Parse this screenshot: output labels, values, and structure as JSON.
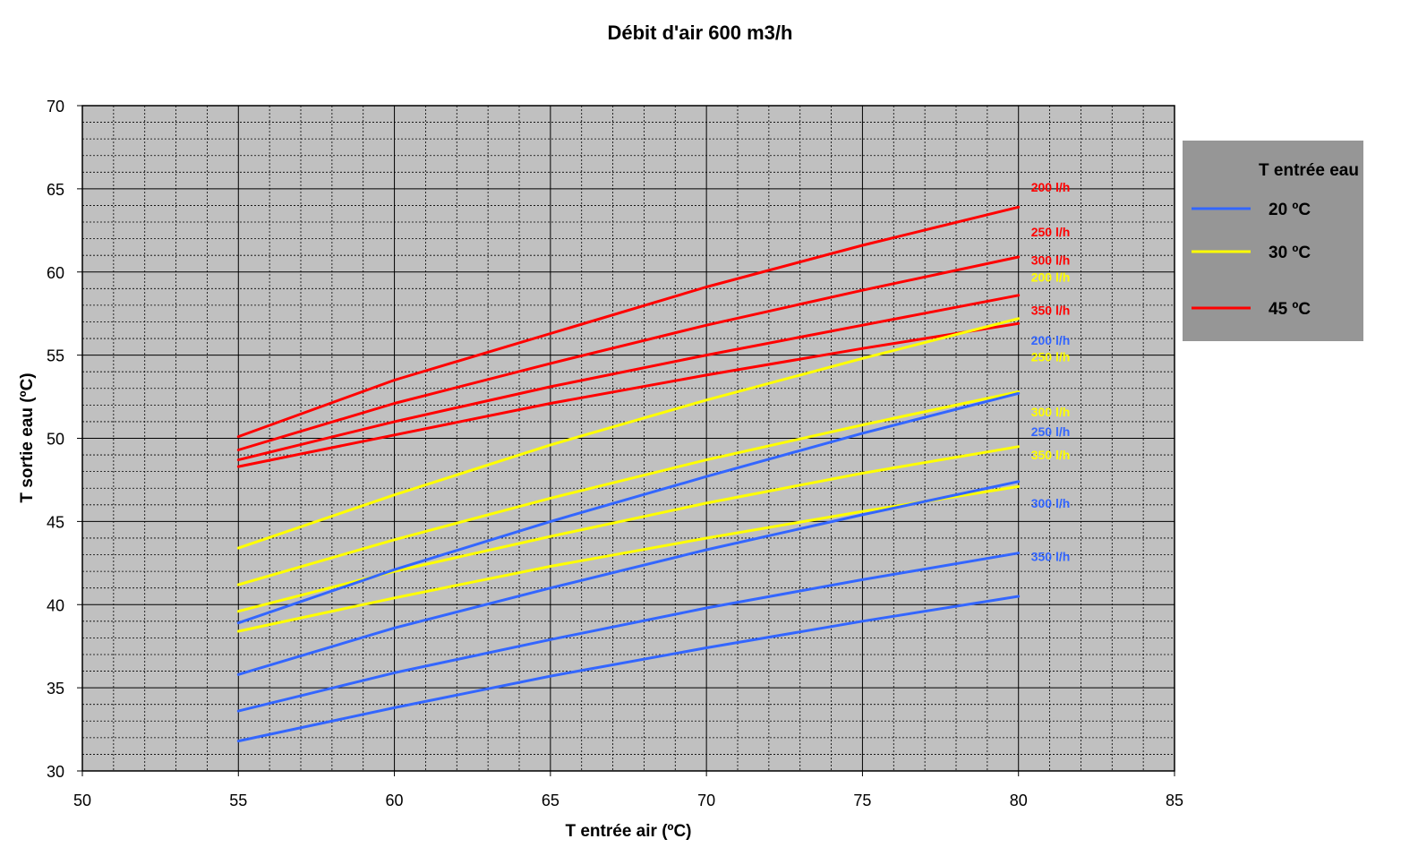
{
  "chart_data": {
    "type": "line",
    "title": "Débit d'air 600 m3/h",
    "xlabel": "T entrée air (ºC)",
    "ylabel": "T sortie eau (ºC)",
    "xlim": [
      50,
      85
    ],
    "ylim": [
      30,
      70
    ],
    "x_ticks": [
      "50",
      "55",
      "60",
      "65",
      "70",
      "75",
      "80",
      "85"
    ],
    "y_ticks": [
      "30",
      "35",
      "40",
      "45",
      "50",
      "55",
      "60",
      "65",
      "70"
    ],
    "grid": true,
    "legend_position": "right",
    "legend": {
      "title": "T entrée eau",
      "entries": [
        {
          "label": "20 ºC",
          "color": "#3366ff"
        },
        {
          "label": "30 ºC",
          "color": "#ffff00"
        },
        {
          "label": "45 ºC",
          "color": "#ff0000"
        }
      ]
    },
    "colors": {
      "plot_background": "#c0c0c0",
      "legend_background": "#969696",
      "grid": "#000000"
    },
    "series": [
      {
        "group": "45 ºC",
        "label": "200 l/h",
        "color": "#ff0000",
        "points": [
          [
            55,
            50.1
          ],
          [
            60,
            53.5
          ],
          [
            65,
            56.3
          ],
          [
            70,
            59.1
          ],
          [
            75,
            61.6
          ],
          [
            80,
            63.9
          ]
        ]
      },
      {
        "group": "45 ºC",
        "label": "250 l/h",
        "color": "#ff0000",
        "points": [
          [
            55,
            49.3
          ],
          [
            60,
            52.1
          ],
          [
            65,
            54.5
          ],
          [
            70,
            56.8
          ],
          [
            75,
            58.9
          ],
          [
            80,
            60.9
          ]
        ]
      },
      {
        "group": "45 ºC",
        "label": "300 l/h",
        "color": "#ff0000",
        "points": [
          [
            55,
            48.7
          ],
          [
            60,
            51.0
          ],
          [
            65,
            53.1
          ],
          [
            70,
            55.0
          ],
          [
            75,
            56.8
          ],
          [
            80,
            58.6
          ]
        ]
      },
      {
        "group": "45 ºC",
        "label": "350 l/h",
        "color": "#ff0000",
        "points": [
          [
            55,
            48.3
          ],
          [
            60,
            50.2
          ],
          [
            65,
            52.1
          ],
          [
            70,
            53.8
          ],
          [
            75,
            55.4
          ],
          [
            80,
            56.9
          ]
        ]
      },
      {
        "group": "30 ºC",
        "label": "200 l/h",
        "color": "#ffff00",
        "points": [
          [
            55,
            43.4
          ],
          [
            60,
            46.6
          ],
          [
            65,
            49.6
          ],
          [
            70,
            52.3
          ],
          [
            75,
            54.8
          ],
          [
            80,
            57.2
          ]
        ]
      },
      {
        "group": "30 ºC",
        "label": "250 l/h",
        "color": "#ffff00",
        "points": [
          [
            55,
            41.2
          ],
          [
            60,
            43.9
          ],
          [
            65,
            46.4
          ],
          [
            70,
            48.7
          ],
          [
            75,
            50.8
          ],
          [
            80,
            52.8
          ]
        ]
      },
      {
        "group": "30 ºC",
        "label": "300 l/h",
        "color": "#ffff00",
        "points": [
          [
            55,
            39.6
          ],
          [
            60,
            42.0
          ],
          [
            65,
            44.1
          ],
          [
            70,
            46.1
          ],
          [
            75,
            47.9
          ],
          [
            80,
            49.5
          ]
        ]
      },
      {
        "group": "30 ºC",
        "label": "350 l/h",
        "color": "#ffff00",
        "points": [
          [
            55,
            38.4
          ],
          [
            60,
            40.4
          ],
          [
            65,
            42.3
          ],
          [
            70,
            44.0
          ],
          [
            75,
            45.6
          ],
          [
            80,
            47.1
          ]
        ]
      },
      {
        "group": "20 ºC",
        "label": "200 l/h",
        "color": "#3366ff",
        "points": [
          [
            55,
            38.9
          ],
          [
            60,
            42.1
          ],
          [
            65,
            45.0
          ],
          [
            70,
            47.7
          ],
          [
            75,
            50.3
          ],
          [
            80,
            52.7
          ]
        ]
      },
      {
        "group": "20 ºC",
        "label": "250 l/h",
        "color": "#3366ff",
        "points": [
          [
            55,
            35.8
          ],
          [
            60,
            38.6
          ],
          [
            65,
            41.0
          ],
          [
            70,
            43.3
          ],
          [
            75,
            45.4
          ],
          [
            80,
            47.4
          ]
        ]
      },
      {
        "group": "20 ºC",
        "label": "300 l/h",
        "color": "#3366ff",
        "points": [
          [
            55,
            33.6
          ],
          [
            60,
            35.9
          ],
          [
            65,
            37.9
          ],
          [
            70,
            39.8
          ],
          [
            75,
            41.5
          ],
          [
            80,
            43.1
          ]
        ]
      },
      {
        "group": "20 ºC",
        "label": "350 l/h",
        "color": "#3366ff",
        "points": [
          [
            55,
            31.8
          ],
          [
            60,
            33.8
          ],
          [
            65,
            35.7
          ],
          [
            70,
            37.4
          ],
          [
            75,
            39.0
          ],
          [
            80,
            40.5
          ]
        ]
      }
    ],
    "series_labels": [
      {
        "text": "200 l/h",
        "color": "#ff0000",
        "y": 65.1
      },
      {
        "text": "250 l/h",
        "color": "#ff0000",
        "y": 62.4
      },
      {
        "text": "300 l/h",
        "color": "#ff0000",
        "y": 60.7
      },
      {
        "text": "200 l/h",
        "color": "#ffff00",
        "y": 59.7
      },
      {
        "text": "350 l/h",
        "color": "#ff0000",
        "y": 57.7
      },
      {
        "text": "200 l/h",
        "color": "#3366ff",
        "y": 55.9
      },
      {
        "text": "250 l/h",
        "color": "#ffff00",
        "y": 54.9
      },
      {
        "text": "300 l/h",
        "color": "#ffff00",
        "y": 51.6
      },
      {
        "text": "250 l/h",
        "color": "#3366ff",
        "y": 50.4
      },
      {
        "text": "350 l/h",
        "color": "#ffff00",
        "y": 49.0
      },
      {
        "text": "300 l/h",
        "color": "#3366ff",
        "y": 46.1
      },
      {
        "text": "350 l/h",
        "color": "#3366ff",
        "y": 42.9
      }
    ]
  }
}
